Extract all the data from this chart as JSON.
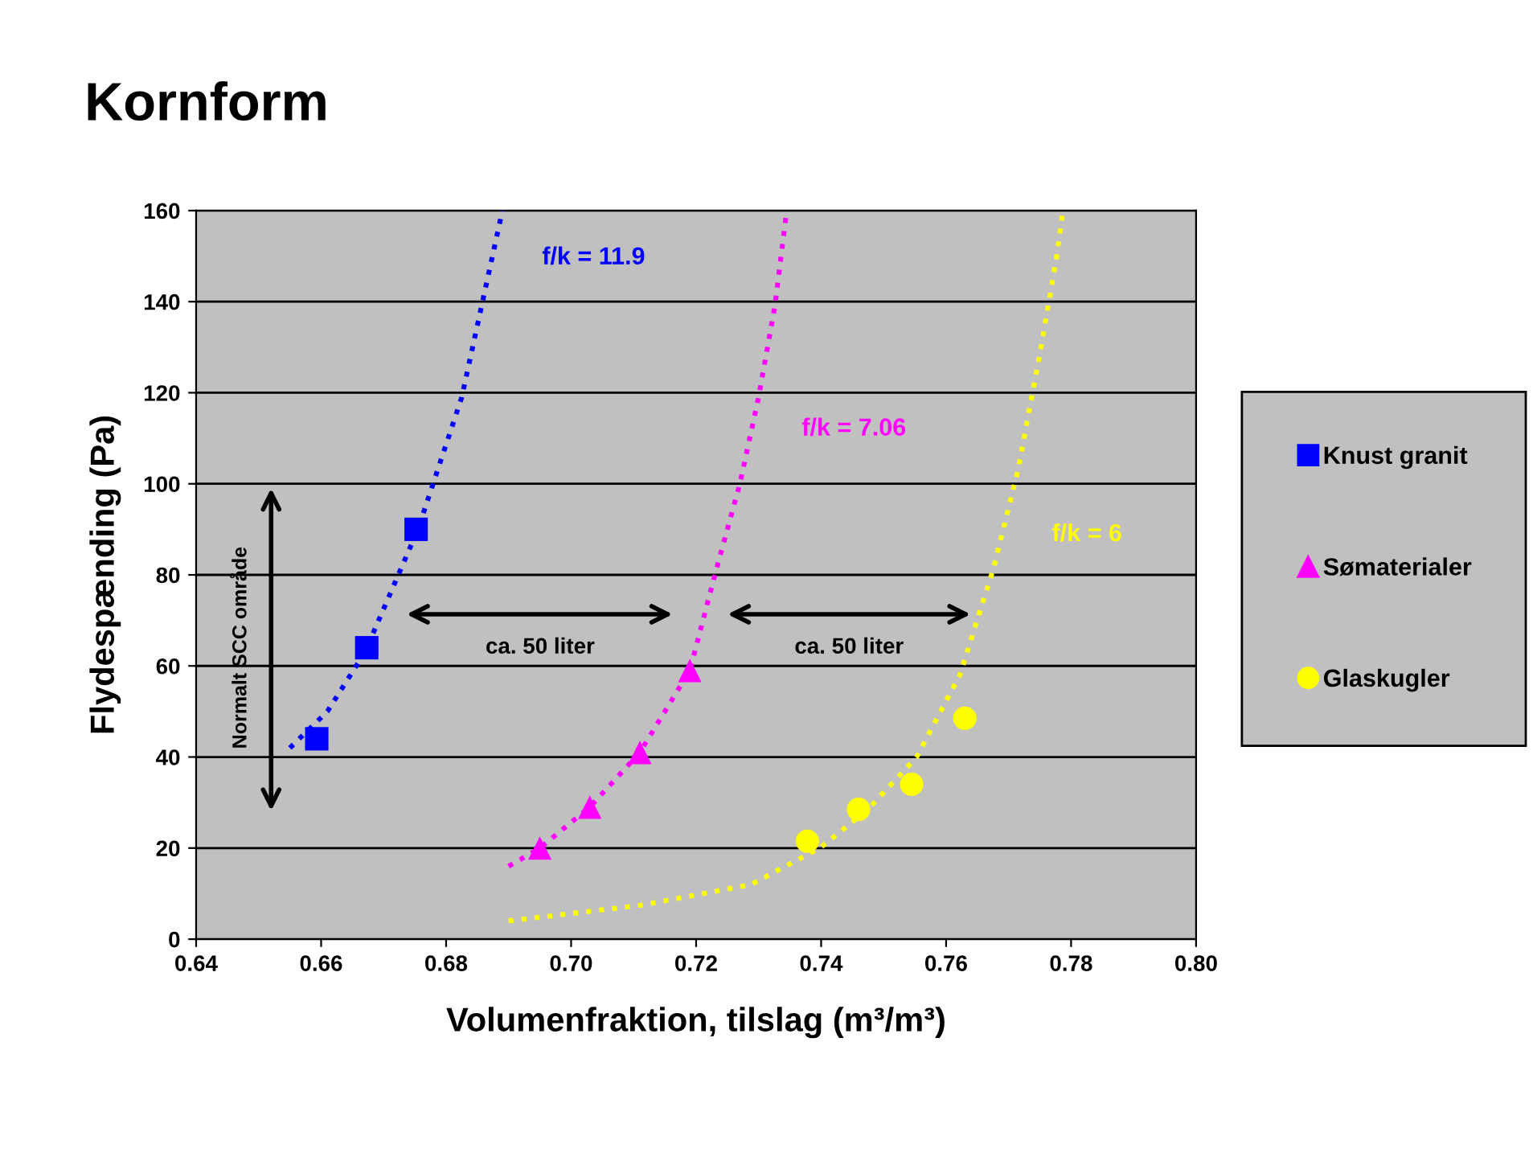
{
  "chart_data": {
    "type": "scatter",
    "title": "Kornform",
    "xlabel": "Volumenfraktion, tilslag (m³/m³)",
    "ylabel": "Flydespænding (Pa)",
    "xlim": [
      0.64,
      0.8
    ],
    "xticks": [
      {
        "value": 0.64,
        "label": "0.64"
      },
      {
        "value": 0.66,
        "label": "0.66"
      },
      {
        "value": 0.68,
        "label": "0.68"
      },
      {
        "value": 0.7,
        "label": "0.70"
      },
      {
        "value": 0.72,
        "label": "0.72"
      },
      {
        "value": 0.74,
        "label": "0.74"
      },
      {
        "value": 0.76,
        "label": "0.76"
      },
      {
        "value": 0.78,
        "label": "0.78"
      },
      {
        "value": 0.8,
        "label": "0.80"
      }
    ],
    "ylim": [
      0,
      160
    ],
    "yticks": [
      0,
      20,
      40,
      60,
      80,
      100,
      120,
      140,
      160
    ],
    "grid": "y",
    "legend": "right",
    "series": [
      {
        "name": "Knust granit",
        "color": "#0000ff",
        "marker": "square",
        "x": [
          0.6593,
          0.6673,
          0.6752
        ],
        "values": [
          44,
          64,
          90
        ]
      },
      {
        "name": "Sømaterialer",
        "color": "#ff00ff",
        "marker": "triangle",
        "x": [
          0.695,
          0.703,
          0.711,
          0.719
        ],
        "values": [
          20,
          29,
          41,
          59
        ]
      },
      {
        "name": "Glaskugler",
        "color": "#ffff00",
        "marker": "circle",
        "x": [
          0.7378,
          0.746,
          0.7545,
          0.763
        ],
        "values": [
          21.5,
          28.5,
          34,
          48.5
        ]
      },
      {
        "type": "line",
        "name": "f/k = 11.9",
        "color": "#0000ff",
        "line_style": "dotted",
        "marker": "none",
        "x": [
          0.655,
          0.661,
          0.667,
          0.6755,
          0.6825,
          0.6863,
          0.689
        ],
        "values": [
          42,
          50,
          63,
          90,
          119,
          143,
          160
        ]
      },
      {
        "type": "line",
        "name": "f/k = 7.06",
        "color": "#ff00ff",
        "line_style": "dotted",
        "marker": "none",
        "x": [
          0.69,
          0.695,
          0.703,
          0.711,
          0.719,
          0.723,
          0.727,
          0.73,
          0.7326,
          0.7345
        ],
        "values": [
          16,
          20,
          29,
          41,
          59,
          80,
          100,
          119,
          139,
          160
        ]
      },
      {
        "type": "line",
        "name": "f/k = 6",
        "color": "#ffff00",
        "line_style": "dotted",
        "marker": "none",
        "x": [
          0.69,
          0.7115,
          0.7288,
          0.7398,
          0.7475,
          0.7553,
          0.7622,
          0.7676,
          0.7715,
          0.775,
          0.7777,
          0.7787
        ],
        "values": [
          4,
          7.5,
          12,
          20,
          28.5,
          40,
          58,
          81.5,
          103,
          128.5,
          150,
          160
        ]
      }
    ],
    "annotations": [
      "ca. 50 liter",
      "ca. 50 liter",
      "Normalt SCC område"
    ]
  }
}
